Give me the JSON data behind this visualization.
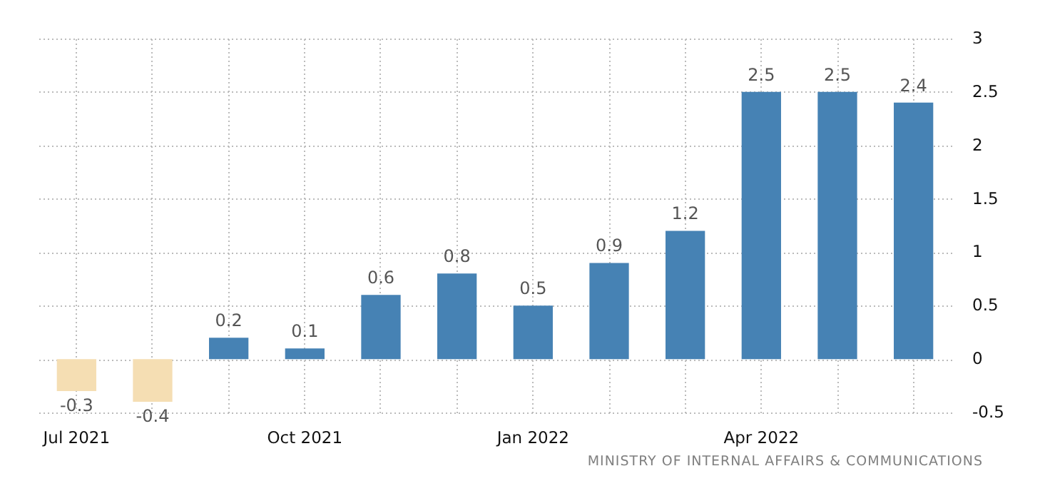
{
  "chart_data": {
    "type": "bar",
    "categories": [
      "Jul 2021",
      null,
      null,
      "Oct 2021",
      null,
      null,
      "Jan 2022",
      null,
      null,
      "Apr 2022",
      null,
      null
    ],
    "values": [
      -0.3,
      -0.4,
      0.2,
      0.1,
      0.6,
      0.8,
      0.5,
      0.9,
      1.2,
      2.5,
      2.5,
      2.4
    ],
    "colors": [
      "#f5deb3",
      "#f5deb3",
      "#4682b4",
      "#4682b4",
      "#4682b4",
      "#4682b4",
      "#4682b4",
      "#4682b4",
      "#4682b4",
      "#4682b4",
      "#4682b4",
      "#4682b4"
    ],
    "ylim": [
      -0.5,
      3
    ],
    "yticks": [
      -0.5,
      0,
      0.5,
      1,
      1.5,
      2,
      2.5,
      3
    ],
    "grid": true,
    "data_labels": true,
    "annotations": [
      "MINISTRY OF INTERNAL AFFAIRS & COMMUNICATIONS"
    ]
  }
}
